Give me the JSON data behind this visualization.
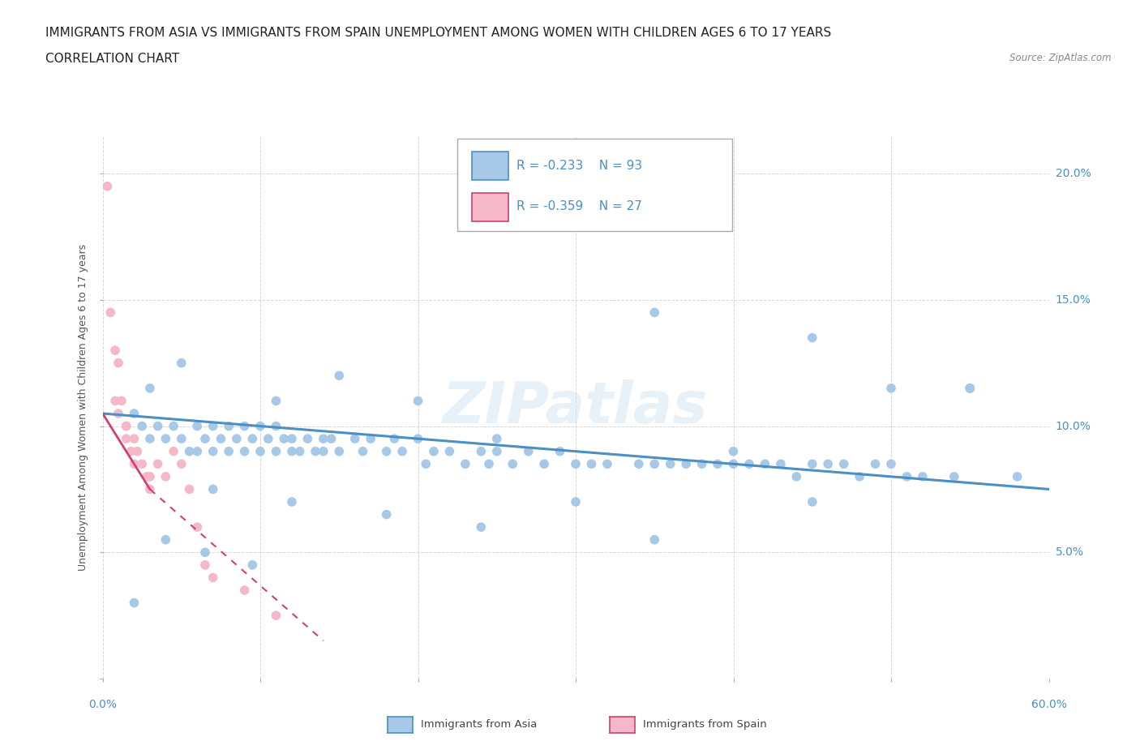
{
  "title_line1": "IMMIGRANTS FROM ASIA VS IMMIGRANTS FROM SPAIN UNEMPLOYMENT AMONG WOMEN WITH CHILDREN AGES 6 TO 17 YEARS",
  "title_line2": "CORRELATION CHART",
  "source": "Source: ZipAtlas.com",
  "ylabel": "Unemployment Among Women with Children Ages 6 to 17 years",
  "ytick_labels": [
    "0.0%",
    "5.0%",
    "10.0%",
    "15.0%",
    "20.0%"
  ],
  "ytick_values": [
    0.0,
    5.0,
    10.0,
    15.0,
    20.0
  ],
  "xlim": [
    0.0,
    60.0
  ],
  "ylim": [
    0.0,
    21.5
  ],
  "watermark": "ZIPatlas",
  "legend_r_asia": "R = -0.233",
  "legend_n_asia": "N = 93",
  "legend_r_spain": "R = -0.359",
  "legend_n_spain": "N = 27",
  "color_asia": "#a8c8e8",
  "color_spain": "#f5b8c8",
  "trendline_asia_color": "#4a90c4",
  "trendline_spain_color": "#d04070",
  "background_color": "#ffffff",
  "grid_color": "#cccccc",
  "title_fontsize": 11,
  "label_fontsize": 9,
  "tick_fontsize": 10
}
